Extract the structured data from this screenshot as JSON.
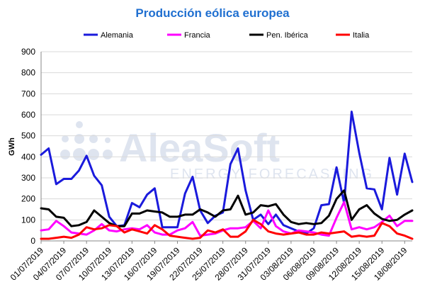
{
  "chart_data": {
    "type": "line",
    "title": "Producción eólica europea",
    "ylabel": "GWh",
    "xlabel": "",
    "ylim": [
      0,
      900
    ],
    "yticks": [
      0,
      100,
      200,
      300,
      400,
      500,
      600,
      700,
      800,
      900
    ],
    "grid": "horizontal",
    "legend_position": "top",
    "x_tick_labels": [
      "01/07/2019",
      "04/07/2019",
      "07/07/2019",
      "10/07/2019",
      "13/07/2019",
      "16/07/2019",
      "19/07/2019",
      "22/07/2019",
      "25/07/2019",
      "28/07/2019",
      "31/07/2019",
      "03/08/2019",
      "06/08/2019",
      "09/08/2019",
      "12/08/2019",
      "15/08/2019",
      "18/08/2019"
    ],
    "x": [
      "01/07/2019",
      "02/07/2019",
      "03/07/2019",
      "04/07/2019",
      "05/07/2019",
      "06/07/2019",
      "07/07/2019",
      "08/07/2019",
      "09/07/2019",
      "10/07/2019",
      "11/07/2019",
      "12/07/2019",
      "13/07/2019",
      "14/07/2019",
      "15/07/2019",
      "16/07/2019",
      "17/07/2019",
      "18/07/2019",
      "19/07/2019",
      "20/07/2019",
      "21/07/2019",
      "22/07/2019",
      "23/07/2019",
      "24/07/2019",
      "25/07/2019",
      "26/07/2019",
      "27/07/2019",
      "28/07/2019",
      "29/07/2019",
      "30/07/2019",
      "31/07/2019",
      "01/08/2019",
      "02/08/2019",
      "03/08/2019",
      "04/08/2019",
      "05/08/2019",
      "06/08/2019",
      "07/08/2019",
      "08/08/2019",
      "09/08/2019",
      "10/08/2019",
      "11/08/2019",
      "12/08/2019",
      "13/08/2019",
      "14/08/2019",
      "15/08/2019",
      "16/08/2019",
      "17/08/2019",
      "18/08/2019",
      "19/08/2019"
    ],
    "series": [
      {
        "name": "Alemania",
        "color": "#1a1adc",
        "values": [
          410,
          440,
          270,
          295,
          295,
          335,
          405,
          310,
          265,
          115,
          70,
          75,
          180,
          160,
          220,
          250,
          65,
          65,
          65,
          225,
          305,
          145,
          85,
          120,
          135,
          365,
          440,
          240,
          100,
          125,
          80,
          125,
          75,
          60,
          45,
          35,
          60,
          170,
          175,
          350,
          180,
          615,
          420,
          250,
          245,
          150,
          395,
          220,
          415,
          280
        ]
      },
      {
        "name": "Francia",
        "color": "#ff00ff",
        "values": [
          50,
          55,
          95,
          70,
          40,
          35,
          30,
          50,
          80,
          50,
          45,
          55,
          60,
          55,
          75,
          40,
          30,
          30,
          50,
          60,
          90,
          25,
          30,
          35,
          50,
          60,
          60,
          65,
          95,
          60,
          145,
          70,
          45,
          35,
          50,
          45,
          40,
          30,
          25,
          110,
          185,
          55,
          65,
          55,
          65,
          90,
          120,
          70,
          95,
          95
        ]
      },
      {
        "name": "Pen. Ibérica",
        "color": "#000000",
        "values": [
          155,
          150,
          115,
          110,
          70,
          75,
          90,
          145,
          115,
          85,
          70,
          70,
          130,
          130,
          145,
          140,
          135,
          115,
          115,
          125,
          125,
          150,
          135,
          115,
          145,
          150,
          215,
          125,
          135,
          170,
          165,
          175,
          125,
          90,
          80,
          85,
          80,
          85,
          120,
          200,
          240,
          100,
          150,
          170,
          130,
          105,
          95,
          100,
          125,
          145
        ]
      },
      {
        "name": "Italia",
        "color": "#ff0000",
        "values": [
          10,
          10,
          15,
          20,
          15,
          30,
          65,
          55,
          60,
          75,
          70,
          40,
          55,
          45,
          35,
          75,
          55,
          25,
          20,
          15,
          10,
          15,
          50,
          40,
          55,
          20,
          20,
          45,
          100,
          80,
          45,
          35,
          30,
          35,
          40,
          30,
          30,
          40,
          35,
          40,
          45,
          20,
          25,
          20,
          25,
          85,
          70,
          35,
          25,
          10
        ]
      }
    ]
  },
  "watermark": {
    "brand": "AleaSoft",
    "tagline": "ENERGY FORECASTING",
    "color": "#c9d3e6"
  }
}
